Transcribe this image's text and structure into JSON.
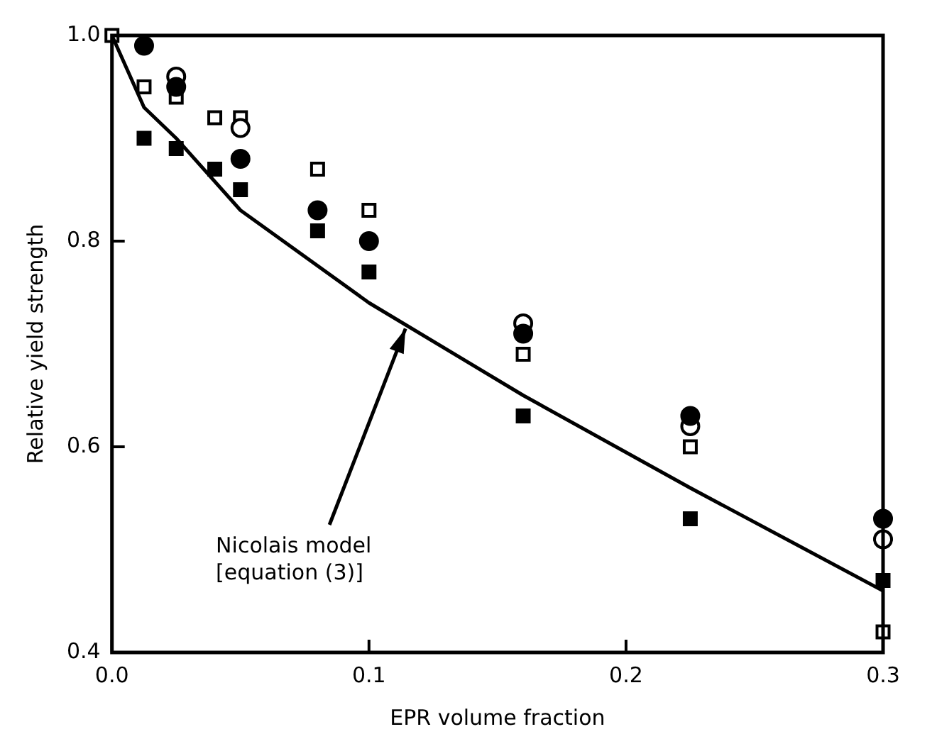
{
  "chart_data": {
    "type": "scatter",
    "xlabel": "EPR volume fraction",
    "ylabel": "Relative yield strength",
    "xlim": [
      0,
      0.3
    ],
    "ylim": [
      0.4,
      1.0
    ],
    "xticks": [
      {
        "value": 0,
        "label": "0.0"
      },
      {
        "value": 0.1,
        "label": "0.1"
      },
      {
        "value": 0.2,
        "label": "0.2"
      },
      {
        "value": 0.3,
        "label": "0.3"
      }
    ],
    "yticks": [
      {
        "value": 0.4,
        "label": "0.4"
      },
      {
        "value": 0.6,
        "label": "0.6"
      },
      {
        "value": 0.8,
        "label": "0.8"
      },
      {
        "value": 1.0,
        "label": "1.0"
      }
    ],
    "grid": false,
    "legend": false,
    "series": [
      {
        "type": "line",
        "color": "#000000",
        "marker": "none",
        "line_style": "solid",
        "x": [
          0,
          0.0125,
          0.025,
          0.05,
          0.1,
          0.16,
          0.225,
          0.3
        ],
        "values": [
          1.0,
          0.93,
          0.9,
          0.83,
          0.74,
          0.65,
          0.56,
          0.46
        ]
      },
      {
        "color": "#000000",
        "marker": "circle",
        "x": [
          0.0125,
          0.025,
          0.05,
          0.08,
          0.1,
          0.16,
          0.225,
          0.3
        ],
        "values": [
          0.99,
          0.95,
          0.88,
          0.83,
          0.8,
          0.71,
          0.63,
          0.53
        ]
      },
      {
        "color": "#ffffff",
        "marker": "circle",
        "x": [
          0.025,
          0.05,
          0.16,
          0.225,
          0.3
        ],
        "values": [
          0.96,
          0.91,
          0.72,
          0.62,
          0.51
        ]
      },
      {
        "color": "#ffffff",
        "marker": "square",
        "x": [
          0,
          0.0125,
          0.025,
          0.04,
          0.05,
          0.08,
          0.1,
          0.16,
          0.225,
          0.3
        ],
        "values": [
          1.0,
          0.95,
          0.94,
          0.92,
          0.92,
          0.87,
          0.83,
          0.69,
          0.6,
          0.42
        ]
      },
      {
        "color": "#000000",
        "marker": "square",
        "x": [
          0.0125,
          0.025,
          0.04,
          0.05,
          0.08,
          0.1,
          0.16,
          0.225,
          0.3
        ],
        "values": [
          0.9,
          0.89,
          0.87,
          0.85,
          0.81,
          0.77,
          0.63,
          0.53,
          0.47
        ]
      }
    ],
    "annotations": [
      {
        "text": "Nicolais model\n[equation (3)]",
        "x": 0.115,
        "y": 0.72
      }
    ]
  }
}
